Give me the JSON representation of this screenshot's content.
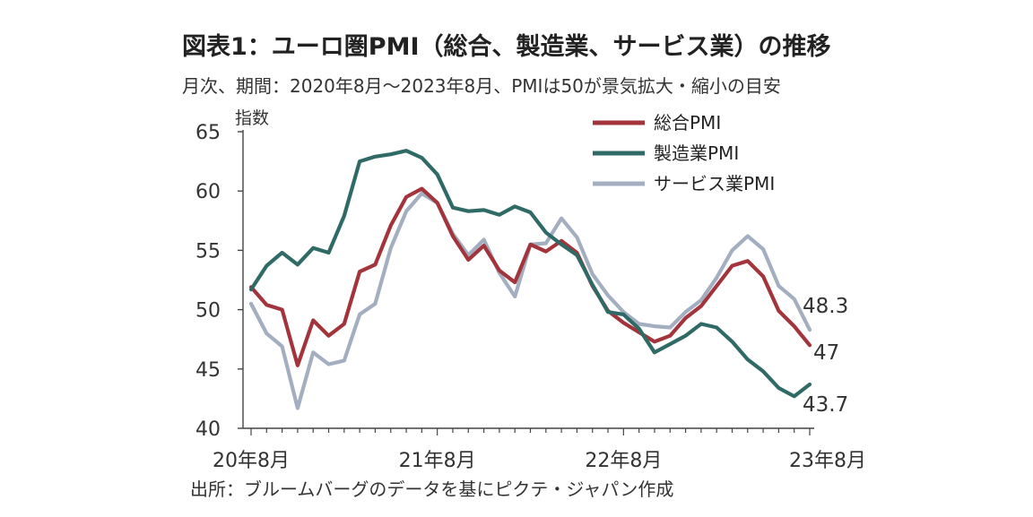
{
  "title": "図表1：ユーロ圏PMI（総合、製造業、サービス業）の推移",
  "subtitle": "月次、期間：2020年8月～2023年8月、PMIは50が景気拡大・縮小の目安",
  "source": "出所：ブルームバーグのデータを基にピクテ・ジャパン作成",
  "chart_data": {
    "type": "line",
    "ylabel": "指数",
    "ylim": [
      40,
      65
    ],
    "yticks": [
      "40",
      "45",
      "50",
      "55",
      "60",
      "65"
    ],
    "xtick_labels": [
      "20年8月",
      "21年8月",
      "22年8月",
      "23年8月"
    ],
    "x": [
      "2020-08",
      "2020-09",
      "2020-10",
      "2020-11",
      "2020-12",
      "2021-01",
      "2021-02",
      "2021-03",
      "2021-04",
      "2021-05",
      "2021-06",
      "2021-07",
      "2021-08",
      "2021-09",
      "2021-10",
      "2021-11",
      "2021-12",
      "2022-01",
      "2022-02",
      "2022-03",
      "2022-04",
      "2022-05",
      "2022-06",
      "2022-07",
      "2022-08",
      "2022-09",
      "2022-10",
      "2022-11",
      "2022-12",
      "2023-01",
      "2023-02",
      "2023-03",
      "2023-04",
      "2023-05",
      "2023-06",
      "2023-07",
      "2023-08"
    ],
    "series": [
      {
        "name": "総合PMI",
        "color": "#a3343c",
        "values": [
          51.9,
          50.4,
          50.0,
          45.3,
          49.1,
          47.8,
          48.8,
          53.2,
          53.8,
          57.1,
          59.5,
          60.2,
          59.0,
          56.2,
          54.2,
          55.4,
          53.3,
          52.3,
          55.5,
          54.9,
          55.8,
          54.8,
          52.0,
          49.9,
          48.9,
          48.1,
          47.3,
          47.8,
          49.3,
          50.3,
          52.0,
          53.7,
          54.1,
          52.8,
          49.9,
          48.6,
          47.0
        ]
      },
      {
        "name": "製造業PMI",
        "color": "#2f6a66",
        "values": [
          51.7,
          53.7,
          54.8,
          53.8,
          55.2,
          54.8,
          57.9,
          62.5,
          62.9,
          63.1,
          63.4,
          62.8,
          61.4,
          58.6,
          58.3,
          58.4,
          58.0,
          58.7,
          58.2,
          56.5,
          55.5,
          54.6,
          52.1,
          49.8,
          49.6,
          48.4,
          46.4,
          47.1,
          47.8,
          48.8,
          48.5,
          47.3,
          45.8,
          44.8,
          43.4,
          42.7,
          43.7
        ]
      },
      {
        "name": "サービス業PMI",
        "color": "#a3aec0",
        "values": [
          50.5,
          48.0,
          46.9,
          41.7,
          46.4,
          45.4,
          45.7,
          49.6,
          50.5,
          55.2,
          58.3,
          59.8,
          59.0,
          56.4,
          54.6,
          55.9,
          53.1,
          51.1,
          55.5,
          55.6,
          57.7,
          56.1,
          53.0,
          51.2,
          49.8,
          48.8,
          48.6,
          48.5,
          49.8,
          50.8,
          52.7,
          55.0,
          56.2,
          55.1,
          52.0,
          50.9,
          48.3
        ]
      }
    ],
    "end_labels": [
      "47",
      "43.7",
      "48.3"
    ]
  }
}
